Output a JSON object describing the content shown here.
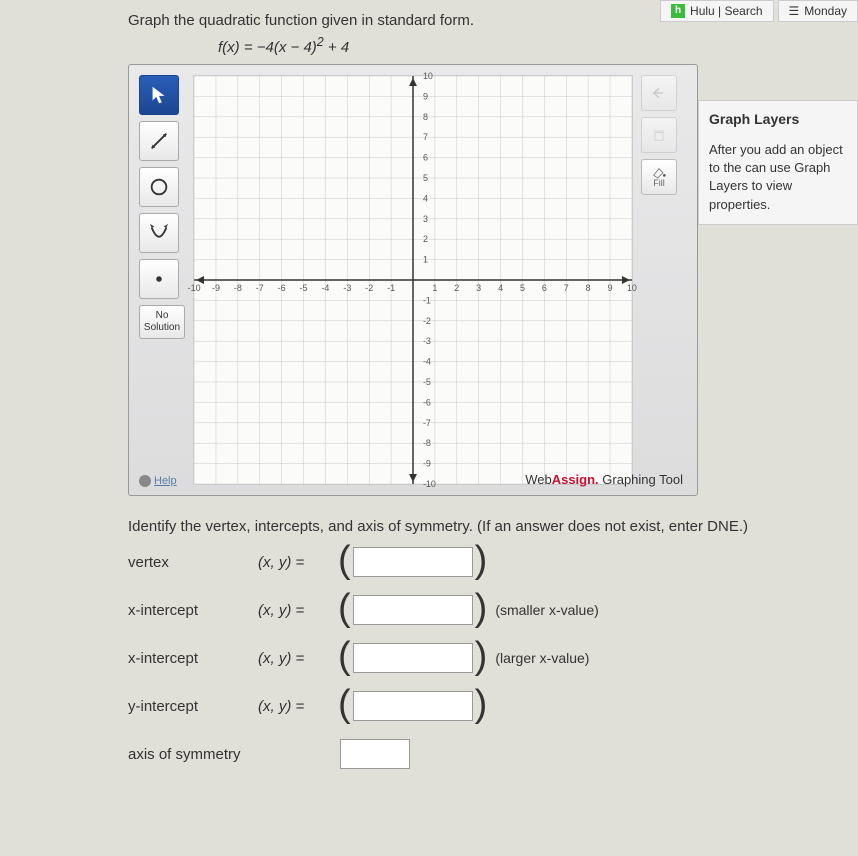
{
  "tabs": {
    "hulu": {
      "label": "Hulu | Search",
      "icon_bg": "#3dbb3d",
      "icon_letter": "h"
    },
    "monday": {
      "label": "Monday",
      "icon_glyph": "☰"
    }
  },
  "question": {
    "prompt": "Graph the quadratic function given in standard form.",
    "formula_lhs": "f(x) = ",
    "formula_rhs": "−4(x − 4)",
    "formula_exp": "2",
    "formula_tail": " + 4"
  },
  "toolbar": {
    "no_solution": "No Solution",
    "help": "Help"
  },
  "right_tools": {
    "fill": "Fill"
  },
  "graph": {
    "xmin": -10,
    "xmax": 10,
    "ymin": -10,
    "ymax": 10,
    "x_ticks": [
      -10,
      -9,
      -8,
      -7,
      -6,
      -5,
      -4,
      -3,
      -2,
      -1,
      1,
      2,
      3,
      4,
      5,
      6,
      7,
      8,
      9,
      10
    ],
    "y_ticks": [
      -10,
      -9,
      -8,
      -7,
      -6,
      -5,
      -4,
      -3,
      -2,
      -1,
      1,
      2,
      3,
      4,
      5,
      6,
      7,
      8,
      9,
      10
    ],
    "grid_color": "#c8c8c8",
    "axis_color": "#333333",
    "bg_color": "#fbfbf9",
    "tick_fontsize": 9
  },
  "brand": {
    "web": "Web",
    "assign": "Assign.",
    "tool": " Graphing Tool"
  },
  "layers": {
    "title": "Graph Layers",
    "text": "After you add an object to the can use Graph Layers to view properties."
  },
  "identify": {
    "prompt": "Identify the vertex, intercepts, and axis of symmetry. (If an answer does not exist, enter DNE.)",
    "vertex": "vertex",
    "xint": "x-intercept",
    "yint": "y-intercept",
    "axis": "axis of symmetry",
    "xy": "(x, y)  =",
    "smaller": "(smaller x-value)",
    "larger": "(larger x-value)"
  }
}
